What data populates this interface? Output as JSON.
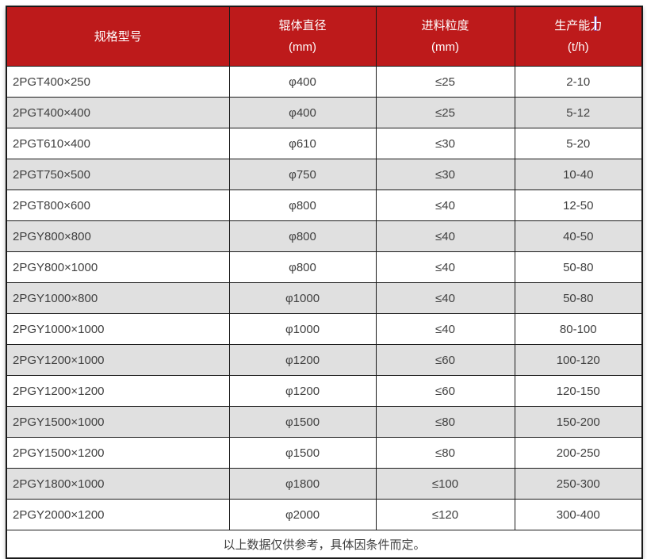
{
  "table": {
    "headers": [
      {
        "title": "规格型号",
        "unit": ""
      },
      {
        "title": "辊体直径",
        "unit": "(mm)"
      },
      {
        "title": "进料粒度",
        "unit": "(mm)"
      },
      {
        "title": "生产能力",
        "unit": "(t/h)"
      }
    ],
    "rows": [
      {
        "model": "2PGT400×250",
        "diameter": "φ400",
        "feed_size": "≤25",
        "capacity": "2-10"
      },
      {
        "model": "2PGT400×400",
        "diameter": "φ400",
        "feed_size": "≤25",
        "capacity": "5-12"
      },
      {
        "model": "2PGT610×400",
        "diameter": "φ610",
        "feed_size": "≤30",
        "capacity": "5-20"
      },
      {
        "model": "2PGT750×500",
        "diameter": "φ750",
        "feed_size": "≤30",
        "capacity": "10-40"
      },
      {
        "model": "2PGT800×600",
        "diameter": "φ800",
        "feed_size": "≤40",
        "capacity": "12-50"
      },
      {
        "model": "2PGY800×800",
        "diameter": "φ800",
        "feed_size": "≤40",
        "capacity": "40-50"
      },
      {
        "model": "2PGY800×1000",
        "diameter": "φ800",
        "feed_size": "≤40",
        "capacity": "50-80"
      },
      {
        "model": "2PGY1000×800",
        "diameter": "φ1000",
        "feed_size": "≤40",
        "capacity": "50-80"
      },
      {
        "model": "2PGY1000×1000",
        "diameter": "φ1000",
        "feed_size": "≤40",
        "capacity": "80-100"
      },
      {
        "model": "2PGY1200×1000",
        "diameter": "φ1200",
        "feed_size": "≤60",
        "capacity": "100-120"
      },
      {
        "model": "2PGY1200×1200",
        "diameter": "φ1200",
        "feed_size": "≤60",
        "capacity": "120-150"
      },
      {
        "model": "2PGY1500×1000",
        "diameter": "φ1500",
        "feed_size": "≤80",
        "capacity": "150-200"
      },
      {
        "model": "2PGY1500×1200",
        "diameter": "φ1500",
        "feed_size": "≤80",
        "capacity": "200-250"
      },
      {
        "model": "2PGY1800×1000",
        "diameter": "φ1800",
        "feed_size": "≤100",
        "capacity": "250-300"
      },
      {
        "model": "2PGY2000×1200",
        "diameter": "φ2000",
        "feed_size": "≤120",
        "capacity": "300-400"
      }
    ],
    "footer_note": "以上数据仅供参考，具体因条件而定。"
  },
  "colors": {
    "header_bg": "#bd1a1b",
    "header_text": "#ffffff",
    "alt_row_bg": "#e0e0e0",
    "border": "#1a1a1a",
    "body_text": "#3f3f3f"
  }
}
